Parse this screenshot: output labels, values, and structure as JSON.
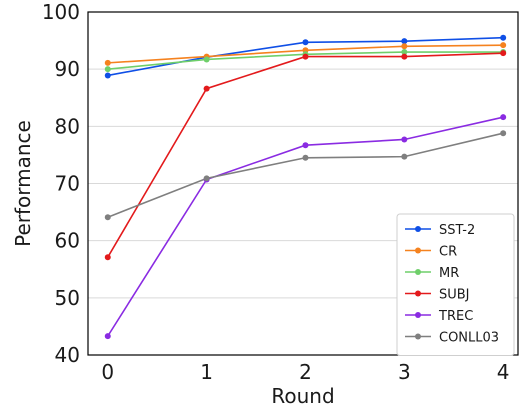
{
  "chart_data": {
    "type": "line",
    "xlabel": "Round",
    "ylabel": "Performance",
    "x": [
      0,
      1,
      2,
      3,
      4
    ],
    "xlim": [
      -0.2,
      4.15
    ],
    "ylim": [
      40,
      100
    ],
    "yticks": [
      40,
      50,
      60,
      70,
      80,
      90,
      100
    ],
    "grid": "horizontal",
    "legend_position": "bottom-right",
    "series": [
      {
        "name": "SST-2",
        "color": "#0f4fe6",
        "values": [
          88.9,
          92.1,
          94.7,
          94.9,
          95.5
        ]
      },
      {
        "name": "CR",
        "color": "#f5821f",
        "values": [
          91.1,
          92.2,
          93.3,
          94.0,
          94.2
        ]
      },
      {
        "name": "MR",
        "color": "#6fcf6a",
        "values": [
          90.0,
          91.7,
          92.6,
          93.0,
          93.0
        ]
      },
      {
        "name": "SUBJ",
        "color": "#e31a1c",
        "values": [
          57.1,
          86.6,
          92.2,
          92.2,
          92.8
        ]
      },
      {
        "name": "TREC",
        "color": "#8a2be2",
        "values": [
          43.3,
          70.7,
          76.7,
          77.7,
          81.6
        ]
      },
      {
        "name": "CONLL03",
        "color": "#7f7f7f",
        "values": [
          64.1,
          70.9,
          74.5,
          74.7,
          78.8
        ]
      }
    ]
  }
}
